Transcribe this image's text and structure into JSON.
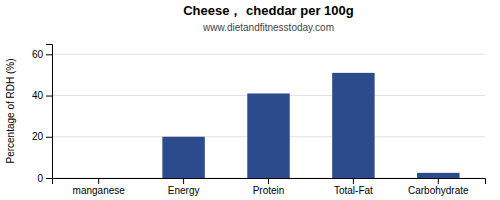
{
  "chart_data": {
    "type": "bar",
    "title": "Cheese， cheddar per 100g",
    "subtitle": "www.dietandfitnesstoday.com",
    "ylabel": "Percentage of RDH (%)",
    "categories": [
      "manganese",
      "Energy",
      "Protein",
      "Total-Fat",
      "Carbohydrate"
    ],
    "values": [
      0.0,
      20.0,
      41.0,
      51.0,
      2.5
    ],
    "color": "#2B4B8C",
    "ylim": [
      0,
      65
    ],
    "yticks": [
      0,
      20,
      40,
      60
    ],
    "grid": true
  }
}
